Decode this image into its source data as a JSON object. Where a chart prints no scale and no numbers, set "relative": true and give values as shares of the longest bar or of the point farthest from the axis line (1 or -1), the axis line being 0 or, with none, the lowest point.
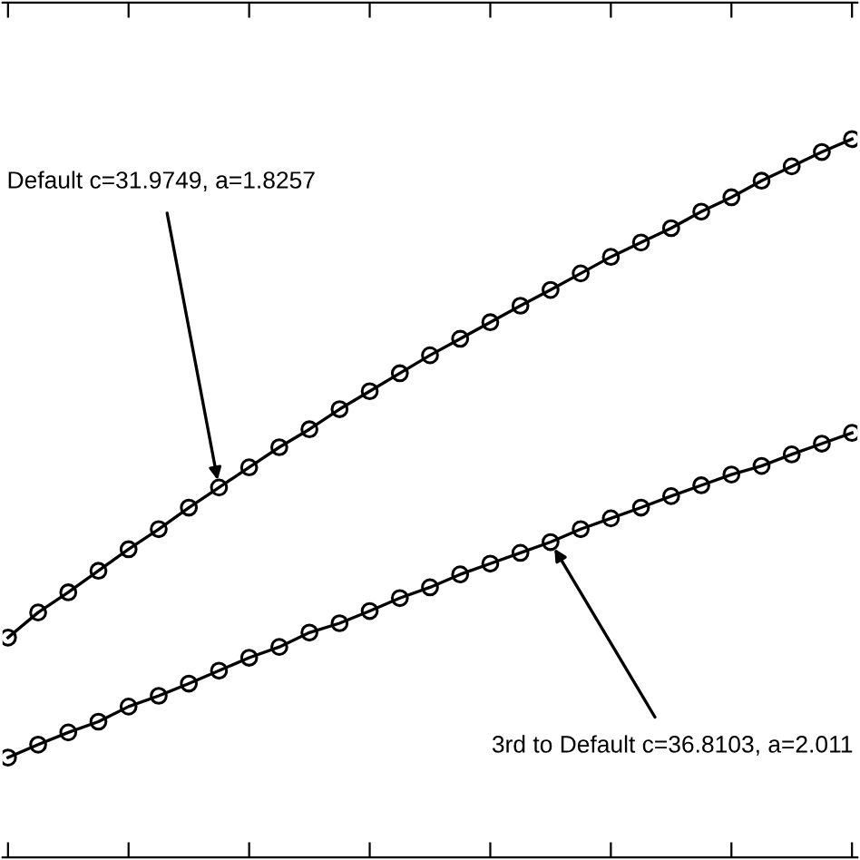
{
  "chart_data": {
    "type": "line",
    "relative": true,
    "marker": "circle",
    "line_style": "solid",
    "grid": false,
    "legend": false,
    "categories": [
      null,
      null,
      null,
      null,
      null,
      null,
      null,
      null,
      null,
      null,
      null,
      null,
      null,
      null,
      null,
      null,
      null,
      null,
      null,
      null,
      null,
      null,
      null,
      null,
      null,
      null,
      null,
      null,
      null
    ],
    "series": [
      {
        "color": "#000000",
        "values": [
          0.306,
          0.341,
          0.369,
          0.399,
          0.429,
          0.457,
          0.487,
          0.515,
          0.543,
          0.571,
          0.596,
          0.624,
          0.649,
          0.674,
          0.699,
          0.722,
          0.745,
          0.768,
          0.79,
          0.813,
          0.836,
          0.856,
          0.876,
          0.899,
          0.919,
          0.942,
          0.962,
          0.982,
          1
        ]
      },
      {
        "color": "#000000",
        "values": [
          0.139,
          0.157,
          0.174,
          0.189,
          0.21,
          0.225,
          0.242,
          0.26,
          0.278,
          0.293,
          0.313,
          0.326,
          0.343,
          0.361,
          0.376,
          0.394,
          0.409,
          0.424,
          0.439,
          0.457,
          0.472,
          0.487,
          0.503,
          0.518,
          0.533,
          0.545,
          0.561,
          0.576,
          0.591
        ]
      }
    ],
    "annotations": [
      "Default c=31.9749, a=1.8257",
      "3rd to Default c=36.8103, a=2.011"
    ]
  }
}
